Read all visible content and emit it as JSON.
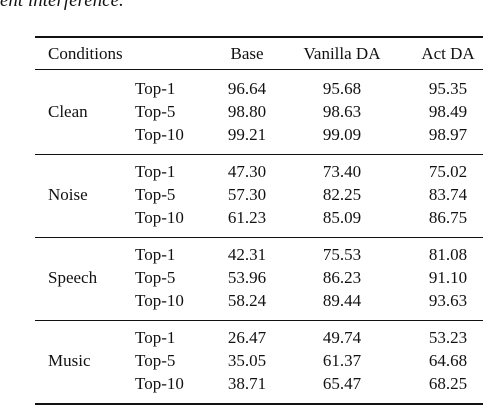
{
  "caption_fragment": "ent interference.",
  "table": {
    "header": [
      "Conditions",
      "Base",
      "Vanilla DA",
      "Act DA"
    ],
    "groups": [
      {
        "condition": "Clean",
        "rows": [
          {
            "metric": "Top-1",
            "values": [
              "96.64",
              "95.68",
              "95.35"
            ]
          },
          {
            "metric": "Top-5",
            "values": [
              "98.80",
              "98.63",
              "98.49"
            ]
          },
          {
            "metric": "Top-10",
            "values": [
              "99.21",
              "99.09",
              "98.97"
            ]
          }
        ]
      },
      {
        "condition": "Noise",
        "rows": [
          {
            "metric": "Top-1",
            "values": [
              "47.30",
              "73.40",
              "75.02"
            ]
          },
          {
            "metric": "Top-5",
            "values": [
              "57.30",
              "82.25",
              "83.74"
            ]
          },
          {
            "metric": "Top-10",
            "values": [
              "61.23",
              "85.09",
              "86.75"
            ]
          }
        ]
      },
      {
        "condition": "Speech",
        "rows": [
          {
            "metric": "Top-1",
            "values": [
              "42.31",
              "75.53",
              "81.08"
            ]
          },
          {
            "metric": "Top-5",
            "values": [
              "53.96",
              "86.23",
              "91.10"
            ]
          },
          {
            "metric": "Top-10",
            "values": [
              "58.24",
              "89.44",
              "93.63"
            ]
          }
        ]
      },
      {
        "condition": "Music",
        "rows": [
          {
            "metric": "Top-1",
            "values": [
              "26.47",
              "49.74",
              "53.23"
            ]
          },
          {
            "metric": "Top-5",
            "values": [
              "35.05",
              "61.37",
              "64.68"
            ]
          },
          {
            "metric": "Top-10",
            "values": [
              "38.71",
              "65.47",
              "68.25"
            ]
          }
        ]
      }
    ]
  }
}
